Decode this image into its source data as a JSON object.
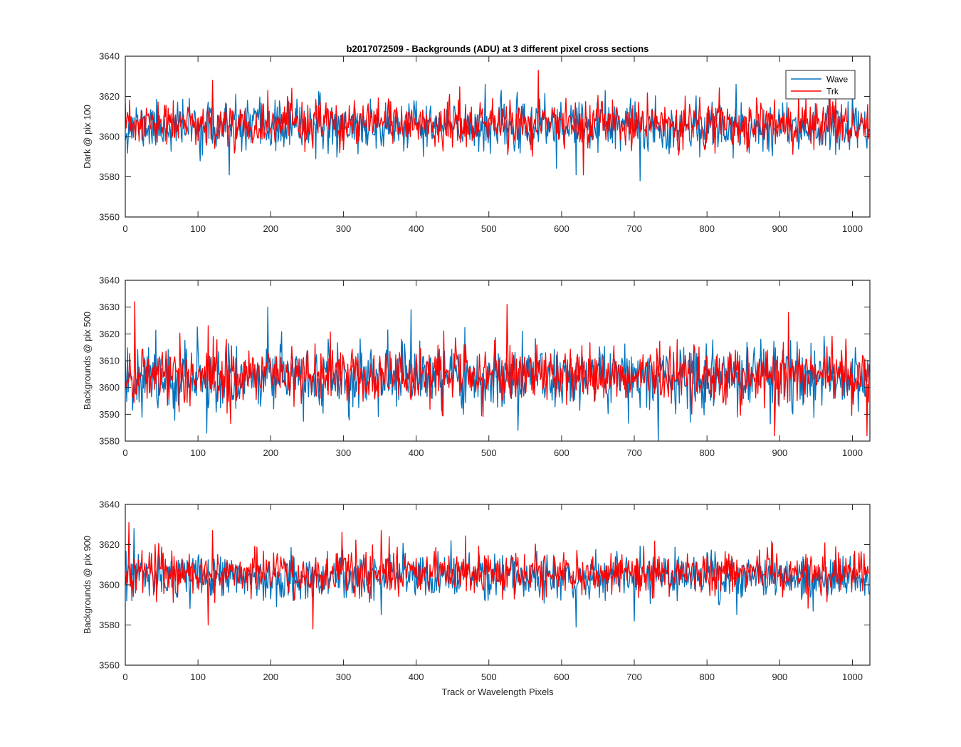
{
  "figure": {
    "title": "b2017072509 - Backgrounds (ADU) at 3 different pixel cross sections",
    "xlabel": "Track or Wavelength Pixels"
  },
  "colors": {
    "wave": "#0072BD",
    "trk": "#FF0000",
    "axis": "#262626",
    "background": "#ffffff"
  },
  "chart_data": [
    {
      "type": "line",
      "title": "b2017072509 - Backgrounds (ADU) at 3 different pixel cross sections",
      "xlabel": "",
      "ylabel": "Dark @ pix 100",
      "xlim": [
        0,
        1024
      ],
      "ylim": [
        3560,
        3640
      ],
      "xticks": [
        0,
        100,
        200,
        300,
        400,
        500,
        600,
        700,
        800,
        900,
        1000
      ],
      "yticks": [
        3560,
        3580,
        3600,
        3620,
        3640
      ],
      "legend": {
        "placement": "top-right",
        "entries": [
          "Wave",
          "Trk"
        ]
      },
      "grid": false,
      "series": [
        {
          "name": "Wave",
          "color": "#0072BD",
          "sample_count": 1024,
          "mean": 3605,
          "std": 6.0,
          "min": 3578,
          "max": 3626,
          "seed": 11,
          "peaks": [
            [
              143,
              3581
            ],
            [
              708,
              3578
            ],
            [
              620,
              3581
            ],
            [
              495,
              3626
            ],
            [
              840,
              3626
            ],
            [
              1000,
              3624
            ]
          ]
        },
        {
          "name": "Trk",
          "color": "#FF0000",
          "sample_count": 1024,
          "mean": 3606,
          "std": 5.5,
          "min": 3581,
          "max": 3633,
          "seed": 23,
          "peaks": [
            [
              120,
              3628
            ],
            [
              568,
              3633
            ],
            [
              196,
              3623
            ],
            [
              630,
              3581
            ]
          ]
        }
      ]
    },
    {
      "type": "line",
      "title": "",
      "xlabel": "",
      "ylabel": "Backgrounds @ pix 500",
      "xlim": [
        0,
        1024
      ],
      "ylim": [
        3580,
        3640
      ],
      "xticks": [
        0,
        100,
        200,
        300,
        400,
        500,
        600,
        700,
        800,
        900,
        1000
      ],
      "yticks": [
        3580,
        3590,
        3600,
        3610,
        3620,
        3630,
        3640
      ],
      "grid": false,
      "series": [
        {
          "name": "Wave",
          "color": "#0072BD",
          "sample_count": 1024,
          "mean": 3604,
          "std": 6.0,
          "min": 3580,
          "max": 3630,
          "seed": 37,
          "peaks": [
            [
              112,
              3583
            ],
            [
              196,
              3630
            ],
            [
              393,
              3629
            ],
            [
              733,
              3580
            ],
            [
              540,
              3584
            ]
          ]
        },
        {
          "name": "Trk",
          "color": "#FF0000",
          "sample_count": 1024,
          "mean": 3605,
          "std": 5.5,
          "min": 3582,
          "max": 3632,
          "seed": 41,
          "peaks": [
            [
              13,
              3632
            ],
            [
              525,
              3631
            ],
            [
              912,
              3628
            ],
            [
              1020,
              3582
            ],
            [
              893,
              3582
            ]
          ]
        }
      ]
    },
    {
      "type": "line",
      "title": "",
      "xlabel": "Track or Wavelength Pixels",
      "ylabel": "Backgrounds @ pix 900",
      "xlim": [
        0,
        1024
      ],
      "ylim": [
        3560,
        3640
      ],
      "xticks": [
        0,
        100,
        200,
        300,
        400,
        500,
        600,
        700,
        800,
        900,
        1000
      ],
      "yticks": [
        3560,
        3580,
        3600,
        3620,
        3640
      ],
      "grid": false,
      "series": [
        {
          "name": "Wave",
          "color": "#0072BD",
          "sample_count": 1024,
          "mean": 3604,
          "std": 5.5,
          "min": 3579,
          "max": 3628,
          "seed": 53,
          "peaks": [
            [
              12,
              3628
            ],
            [
              620,
              3579
            ],
            [
              700,
              3582
            ]
          ]
        },
        {
          "name": "Trk",
          "color": "#FF0000",
          "sample_count": 1024,
          "mean": 3606,
          "std": 5.5,
          "min": 3578,
          "max": 3631,
          "seed": 67,
          "peaks": [
            [
              5,
              3631
            ],
            [
              114,
              3580
            ],
            [
              258,
              3578
            ],
            [
              352,
              3627
            ],
            [
              120,
              3627
            ]
          ]
        }
      ]
    }
  ]
}
